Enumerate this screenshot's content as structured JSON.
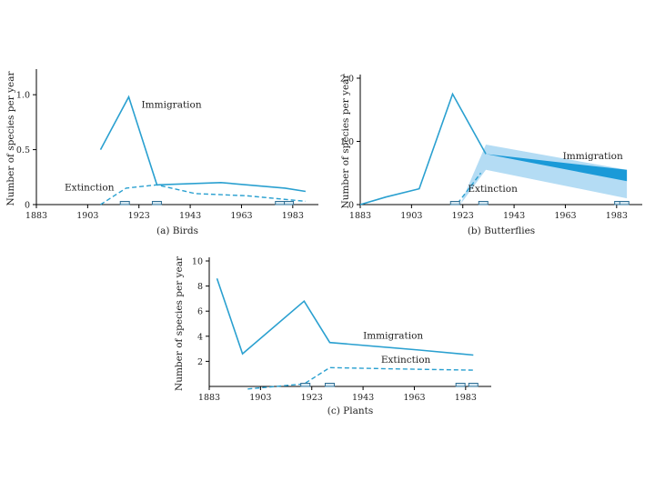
{
  "chart_data": [
    {
      "id": "a",
      "type": "line",
      "caption": "(a)  Birds",
      "ylabel": "Number of species per year",
      "xlim": [
        1883,
        1993
      ],
      "ylim": [
        0,
        1.2
      ],
      "xticks": [
        1883,
        1903,
        1923,
        1943,
        1963,
        1983
      ],
      "xtick_labels": [
        "1883",
        "1903",
        "1923",
        "1943",
        "1963",
        "1983"
      ],
      "yticks": [
        0,
        0.5,
        1.0
      ],
      "ytick_labels": [
        "0",
        "0.5",
        "1.0"
      ],
      "series": [
        {
          "name": "Immigration",
          "style": "solid",
          "x": [
            1908,
            1919,
            1930,
            1955,
            1980,
            1988
          ],
          "y": [
            0.5,
            0.98,
            0.18,
            0.2,
            0.15,
            0.12
          ]
        },
        {
          "name": "Extinction",
          "style": "dashed",
          "x": [
            1908,
            1918,
            1930,
            1945,
            1965,
            1988
          ],
          "y": [
            0.0,
            0.15,
            0.18,
            0.1,
            0.08,
            0.03
          ]
        }
      ],
      "census_years": [
        1917.5,
        1930,
        1978,
        1981.5
      ],
      "annotations": [
        {
          "text": "Immigration",
          "x": 1924,
          "y": 0.88
        },
        {
          "text": "Extinction",
          "x": 1894,
          "y": 0.13
        }
      ]
    },
    {
      "id": "b",
      "type": "line",
      "caption": "(b)  Butterflies",
      "ylabel": "Number of species per year",
      "xlim": [
        1883,
        1993
      ],
      "ylim": [
        0,
        2.0
      ],
      "xticks": [
        1883,
        1903,
        1923,
        1943,
        1963,
        1983
      ],
      "xtick_labels": [
        "1883",
        "1903",
        "1923",
        "1943",
        "1963",
        "1983"
      ],
      "yticks": [
        0,
        1.0,
        2.0
      ],
      "ytick_labels": [
        "0",
        "1.0",
        "2.0"
      ],
      "series": [
        {
          "name": "Immigration",
          "style": "solid",
          "x": [
            1883,
            1893,
            1906,
            1919,
            1932
          ],
          "y": [
            0.0,
            0.12,
            0.25,
            1.75,
            0.8
          ]
        },
        {
          "name": "Extinction",
          "style": "dashed",
          "x": [
            1921,
            1930
          ],
          "y": [
            0.02,
            0.5
          ]
        }
      ],
      "uncertainty_band": {
        "x": [
          1922,
          1932,
          1987
        ],
        "lower": [
          0.0,
          0.55,
          0.1
        ],
        "upper": [
          0.0,
          0.95,
          0.55
        ]
      },
      "immigration_band": {
        "x": [
          1932,
          1987
        ],
        "lower": [
          0.8,
          0.37
        ],
        "upper": [
          0.8,
          0.55
        ]
      },
      "census_years": [
        1920,
        1931,
        1984,
        1986
      ],
      "annotations": [
        {
          "text": "Immigration",
          "x": 1962,
          "y": 0.72
        },
        {
          "text": "Extinction",
          "x": 1925,
          "y": 0.2
        }
      ]
    },
    {
      "id": "c",
      "type": "line",
      "caption": "(c)  Plants",
      "ylabel": "Number of species per year",
      "xlim": [
        1883,
        1993
      ],
      "ylim": [
        0,
        10
      ],
      "xticks": [
        1883,
        1903,
        1923,
        1943,
        1963,
        1983
      ],
      "xtick_labels": [
        "1883",
        "1903",
        "1923",
        "1943",
        "1963",
        "1983"
      ],
      "yticks": [
        2,
        4,
        6,
        8,
        10
      ],
      "ytick_labels": [
        "2",
        "4",
        "6",
        "8",
        "10"
      ],
      "series": [
        {
          "name": "Immigration",
          "style": "solid",
          "x": [
            1886,
            1896,
            1920,
            1930,
            1965,
            1986
          ],
          "y": [
            8.6,
            2.6,
            6.8,
            3.5,
            2.9,
            2.5
          ]
        },
        {
          "name": "Extinction",
          "style": "dashed",
          "x": [
            1898,
            1920,
            1930,
            1955,
            1986
          ],
          "y": [
            -0.2,
            0.2,
            1.5,
            1.4,
            1.3
          ]
        }
      ],
      "census_years": [
        1920.5,
        1930,
        1981,
        1986
      ],
      "annotations": [
        {
          "text": "Immigration",
          "x": 1943,
          "y": 3.8
        },
        {
          "text": "Extinction",
          "x": 1950,
          "y": 1.9
        }
      ]
    }
  ]
}
